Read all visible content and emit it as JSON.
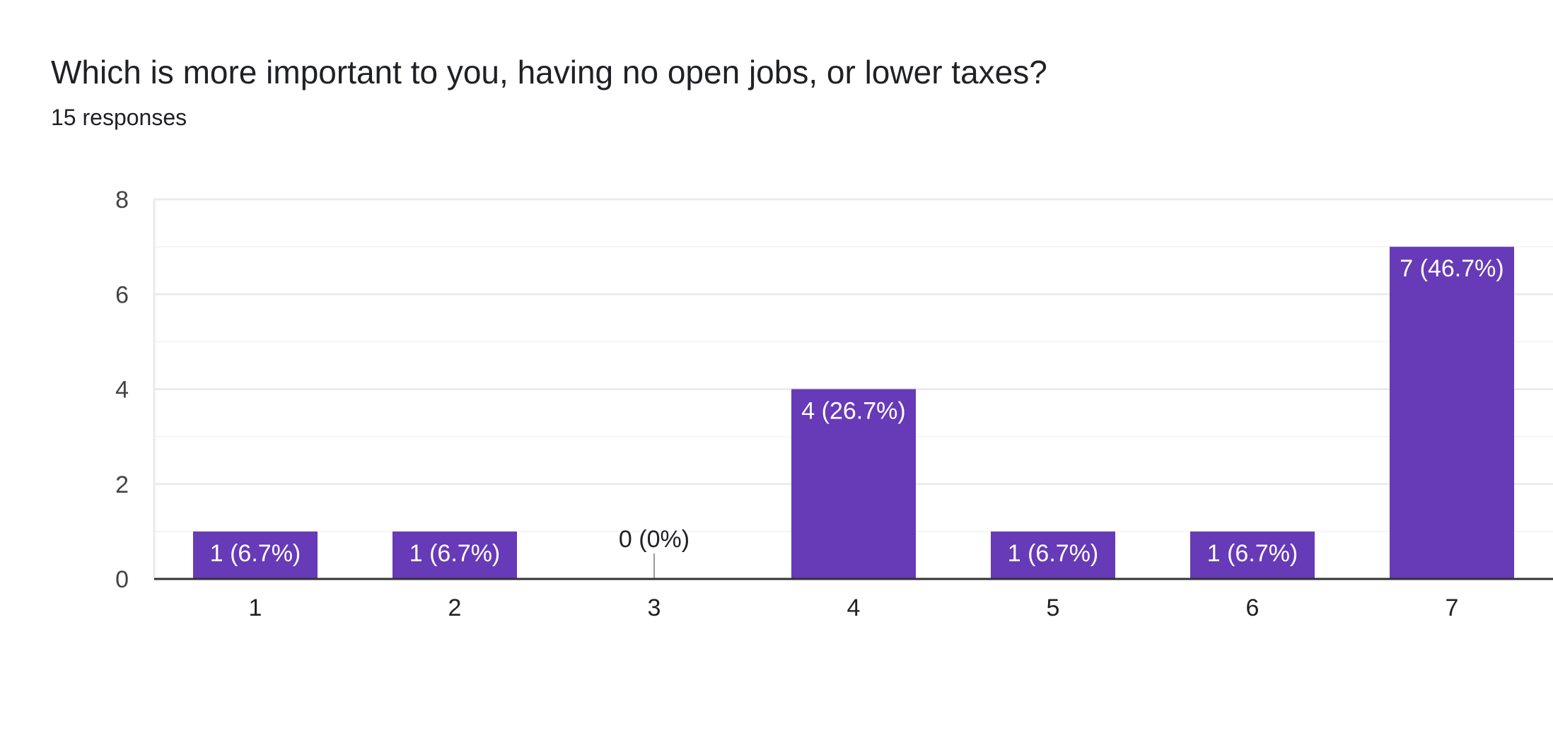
{
  "header": {
    "question": "Which is more important to you, having no open jobs, or lower taxes?",
    "responses": "15 responses"
  },
  "colors": {
    "bar": "#673ab7",
    "grid_major": "#ebebeb",
    "grid_minor": "#f5f5f5",
    "axis": "#333333",
    "tick_text": "#444444",
    "label_inside": "#ffffff",
    "label_outside": "#202124"
  },
  "chart_data": {
    "type": "bar",
    "categories": [
      "1",
      "2",
      "3",
      "4",
      "5",
      "6",
      "7"
    ],
    "values": [
      1,
      1,
      0,
      4,
      1,
      1,
      7
    ],
    "data_labels": [
      "1 (6.7%)",
      "1 (6.7%)",
      "0 (0%)",
      "4 (26.7%)",
      "1 (6.7%)",
      "1 (6.7%)",
      "7 (46.7%)"
    ],
    "y_ticks": [
      "0",
      "2",
      "4",
      "6",
      "8"
    ],
    "ylim": [
      0,
      8
    ],
    "grid": true,
    "legend": false
  }
}
